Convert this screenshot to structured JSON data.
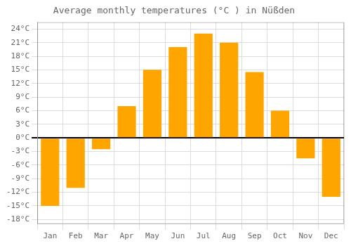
{
  "chart_data": {
    "type": "bar",
    "title": "Average monthly temperatures (°C ) in Nüßden",
    "categories": [
      "Jan",
      "Feb",
      "Mar",
      "Apr",
      "May",
      "Jun",
      "Jul",
      "Aug",
      "Sep",
      "Oct",
      "Nov",
      "Dec"
    ],
    "values": [
      -15,
      -11,
      -2.5,
      7,
      15,
      20,
      23,
      21,
      14.5,
      6,
      -4.5,
      -13
    ],
    "color": "#FFA500",
    "ylim": [
      -19,
      25.5
    ],
    "yticks": [
      {
        "value": -18,
        "label": "-18°C"
      },
      {
        "value": -15,
        "label": "-15°C"
      },
      {
        "value": -12,
        "label": "-12°C"
      },
      {
        "value": -9,
        "label": "-9°C"
      },
      {
        "value": -6,
        "label": "-6°C"
      },
      {
        "value": -3,
        "label": "-3°C"
      },
      {
        "value": 0,
        "label": "0°C"
      },
      {
        "value": 3,
        "label": "3°C"
      },
      {
        "value": 6,
        "label": "6°C"
      },
      {
        "value": 9,
        "label": "9°C"
      },
      {
        "value": 12,
        "label": "12°C"
      },
      {
        "value": 15,
        "label": "15°C"
      },
      {
        "value": 18,
        "label": "18°C"
      },
      {
        "value": 21,
        "label": "21°C"
      },
      {
        "value": 24,
        "label": "24°C"
      }
    ],
    "grid": true
  }
}
